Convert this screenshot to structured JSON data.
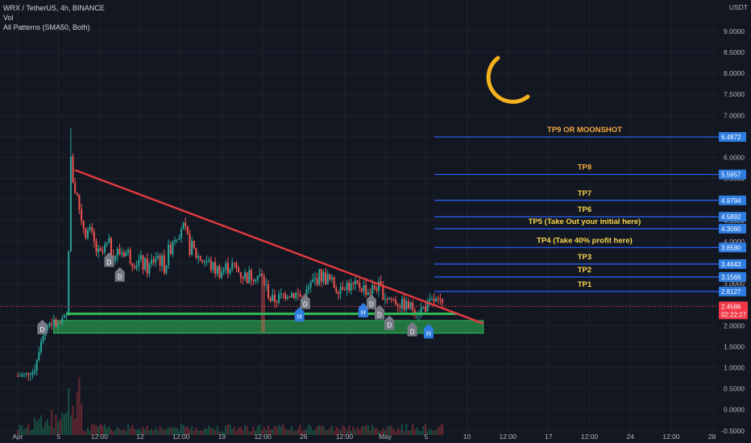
{
  "legend": {
    "symbol": "WRX / TetherUS, 4h, BINANCE",
    "vol": "Vol",
    "indicator": "All Patterns (SMA50, Both)"
  },
  "currency": "USDT",
  "chart_data": {
    "type": "candlestick",
    "ylim": [
      -0.6,
      9.4
    ],
    "y_ticks": [
      -0.5,
      0.0,
      0.5,
      1.0,
      1.5,
      2.0,
      2.5,
      3.0,
      3.5,
      4.0,
      4.5,
      5.0,
      5.5,
      6.0,
      6.5,
      7.0,
      7.5,
      8.0,
      8.5,
      9.0
    ],
    "y_tick_labels": [
      "-0.5000",
      "0.0000",
      "0.5000",
      "1.0000",
      "1.5000",
      "2.0000",
      "2.5000",
      "3.0000",
      "3.5000",
      "4.0000",
      "4.5000",
      "5.0000",
      "5.5000",
      "6.0000",
      "6.5000",
      "7.0000",
      "7.5000",
      "8.0000",
      "8.5000",
      "9.0000"
    ],
    "x_ticks": [
      {
        "t": 0,
        "label": "Apr"
      },
      {
        "t": 5,
        "label": "5"
      },
      {
        "t": 10,
        "label": "12:00"
      },
      {
        "t": 15,
        "label": "12"
      },
      {
        "t": 20,
        "label": "12:00"
      },
      {
        "t": 25,
        "label": "19"
      },
      {
        "t": 30,
        "label": "12:00"
      },
      {
        "t": 35,
        "label": "26"
      },
      {
        "t": 40,
        "label": "12:00"
      },
      {
        "t": 45,
        "label": "May"
      },
      {
        "t": 50,
        "label": "5"
      },
      {
        "t": 55,
        "label": "10"
      },
      {
        "t": 60,
        "label": "12:00"
      },
      {
        "t": 65,
        "label": "17"
      },
      {
        "t": 70,
        "label": "12:00"
      },
      {
        "t": 75,
        "label": "24"
      },
      {
        "t": 80,
        "label": "12:00"
      },
      {
        "t": 85,
        "label": "28"
      }
    ],
    "series_points": [
      [
        0,
        0.8
      ],
      [
        2,
        0.9
      ],
      [
        3,
        1.8
      ],
      [
        4,
        2.1
      ],
      [
        5,
        2.0
      ],
      [
        6,
        2.2
      ],
      [
        6.5,
        5.8
      ],
      [
        7,
        5.3
      ],
      [
        8,
        4.4
      ],
      [
        9,
        4.1
      ],
      [
        10,
        3.6
      ],
      [
        11,
        3.9
      ],
      [
        12,
        3.7
      ],
      [
        13,
        3.8
      ],
      [
        14,
        3.6
      ],
      [
        15,
        3.5
      ],
      [
        16,
        3.35
      ],
      [
        17,
        3.7
      ],
      [
        18,
        3.4
      ],
      [
        19,
        4.1
      ],
      [
        20,
        4.4
      ],
      [
        21,
        3.9
      ],
      [
        22,
        3.65
      ],
      [
        23,
        3.55
      ],
      [
        24,
        3.35
      ],
      [
        25,
        3.3
      ],
      [
        26,
        3.45
      ],
      [
        27,
        3.3
      ],
      [
        28,
        3.15
      ],
      [
        29,
        3.25
      ],
      [
        30,
        3.1
      ],
      [
        31,
        2.6
      ],
      [
        32,
        2.65
      ],
      [
        33,
        2.8
      ],
      [
        34,
        2.75
      ],
      [
        35,
        2.65
      ],
      [
        36,
        3.0
      ],
      [
        37,
        3.2
      ],
      [
        38,
        3.1
      ],
      [
        39,
        2.9
      ],
      [
        40,
        3.0
      ],
      [
        41,
        2.9
      ],
      [
        42,
        2.95
      ],
      [
        43,
        2.8
      ],
      [
        44,
        2.95
      ],
      [
        45,
        2.7
      ],
      [
        46,
        2.6
      ],
      [
        47,
        2.5
      ],
      [
        48,
        2.45
      ],
      [
        49,
        2.35
      ],
      [
        50,
        2.45
      ],
      [
        51,
        2.6
      ],
      [
        52,
        2.46
      ]
    ],
    "trendline": {
      "from": [
        7,
        5.7
      ],
      "to": [
        57,
        2.05
      ],
      "color": "#e03a3e"
    },
    "support_line": {
      "from": [
        6,
        2.28
      ],
      "to": [
        54,
        2.28
      ],
      "color": "#2fbf5a"
    },
    "support_zone": {
      "t_from": 4.4,
      "t_to": 57,
      "y_from": 1.82,
      "y_to": 2.12,
      "color": "#2fbf5a"
    },
    "targets": [
      {
        "name": "TP9 OR MOONSHOT",
        "value": 6.4872,
        "label": "6.4872",
        "color": "#f5a742"
      },
      {
        "name": "TP8",
        "value": 5.5957,
        "label": "5.5957",
        "color": "#f5a742"
      },
      {
        "name": "TP7",
        "value": 4.9794,
        "label": "4.9794",
        "color": "#f7c948"
      },
      {
        "name": "TP6",
        "value": 4.5892,
        "label": "4.5892",
        "color": "#f7d64a"
      },
      {
        "name": "TP5 (Take Out your initial here)",
        "value": 4.306,
        "label": "4.3060",
        "color": "#f7d64a"
      },
      {
        "name": "TP4 (Take 40% profit here)",
        "value": 3.858,
        "label": "3.8580",
        "color": "#f7d64a"
      },
      {
        "name": "TP3",
        "value": 3.4643,
        "label": "3.4643",
        "color": "#f7d64a"
      },
      {
        "name": "TP2",
        "value": 3.1566,
        "label": "3.1566",
        "color": "#f7d64a"
      },
      {
        "name": "TP1",
        "value": 2.8127,
        "label": "2.8127",
        "color": "#f7d64a"
      }
    ],
    "last_price": {
      "value": 2.4586,
      "label": "2.4586",
      "countdown": "02:22:27",
      "color": "#f23645"
    },
    "pattern_markers": [
      {
        "t": 3,
        "y": 1.95,
        "label": "D",
        "kind": "bear"
      },
      {
        "t": 11.2,
        "y": 3.55,
        "label": "D",
        "kind": "bear"
      },
      {
        "t": 12.5,
        "y": 3.2,
        "label": "D",
        "kind": "bear"
      },
      {
        "t": 35.2,
        "y": 2.55,
        "label": "D",
        "kind": "bear"
      },
      {
        "t": 34.5,
        "y": 2.25,
        "label": "H",
        "kind": "bull"
      },
      {
        "t": 42.3,
        "y": 2.35,
        "label": "H",
        "kind": "bull"
      },
      {
        "t": 43.3,
        "y": 2.55,
        "label": "D",
        "kind": "bear"
      },
      {
        "t": 44.3,
        "y": 2.3,
        "label": "D",
        "kind": "bear"
      },
      {
        "t": 45.5,
        "y": 2.05,
        "label": "D",
        "kind": "bear"
      },
      {
        "t": 48.3,
        "y": 1.9,
        "label": "D",
        "kind": "bear"
      },
      {
        "t": 50.3,
        "y": 1.85,
        "label": "H",
        "kind": "bull"
      }
    ]
  },
  "colors": {
    "background": "#131722",
    "grid": "#1e222d",
    "candle_up": "#26a69a",
    "candle_down": "#ef5350",
    "target_line": "#2962ff",
    "target_tag": "#2f7de1",
    "moon": "#f5b21e",
    "volume": "#1f6b3a"
  },
  "moon_icon": "crescent-moon-icon"
}
